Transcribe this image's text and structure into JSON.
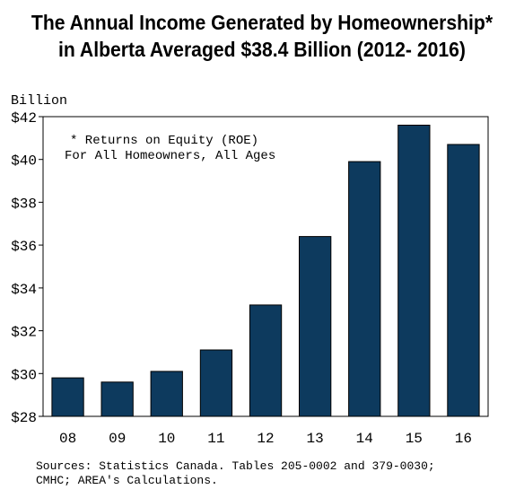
{
  "title": {
    "line1": "The Annual Income Generated by Homeownership*",
    "line2": "in Alberta Averaged $38.4 Billion (2012- 2016)"
  },
  "sources": {
    "line1": "Sources: Statistics Canada. Tables 205-0002 and 379-0030;",
    "line2": "CMHC; AREA's Calculations."
  },
  "colors": {
    "bar": "#0d3a5e",
    "axis": "#000000",
    "background": "#ffffff"
  },
  "chart_data": {
    "type": "bar",
    "ylabel": "Billion",
    "categories": [
      "08",
      "09",
      "10",
      "11",
      "12",
      "13",
      "14",
      "15",
      "16"
    ],
    "values": [
      29.8,
      29.6,
      30.1,
      31.1,
      33.2,
      36.4,
      39.9,
      41.6,
      40.7
    ],
    "ylim": [
      28,
      42
    ],
    "yticks": [
      28,
      30,
      32,
      34,
      36,
      38,
      40,
      42
    ],
    "ytick_labels": [
      "$28",
      "$30",
      "$32",
      "$34",
      "$36",
      "$38",
      "$40",
      "$42"
    ],
    "grid": false,
    "annotation": {
      "line1": "* Returns on Equity (ROE)",
      "line2": "For All Homeowners, All Ages"
    }
  }
}
